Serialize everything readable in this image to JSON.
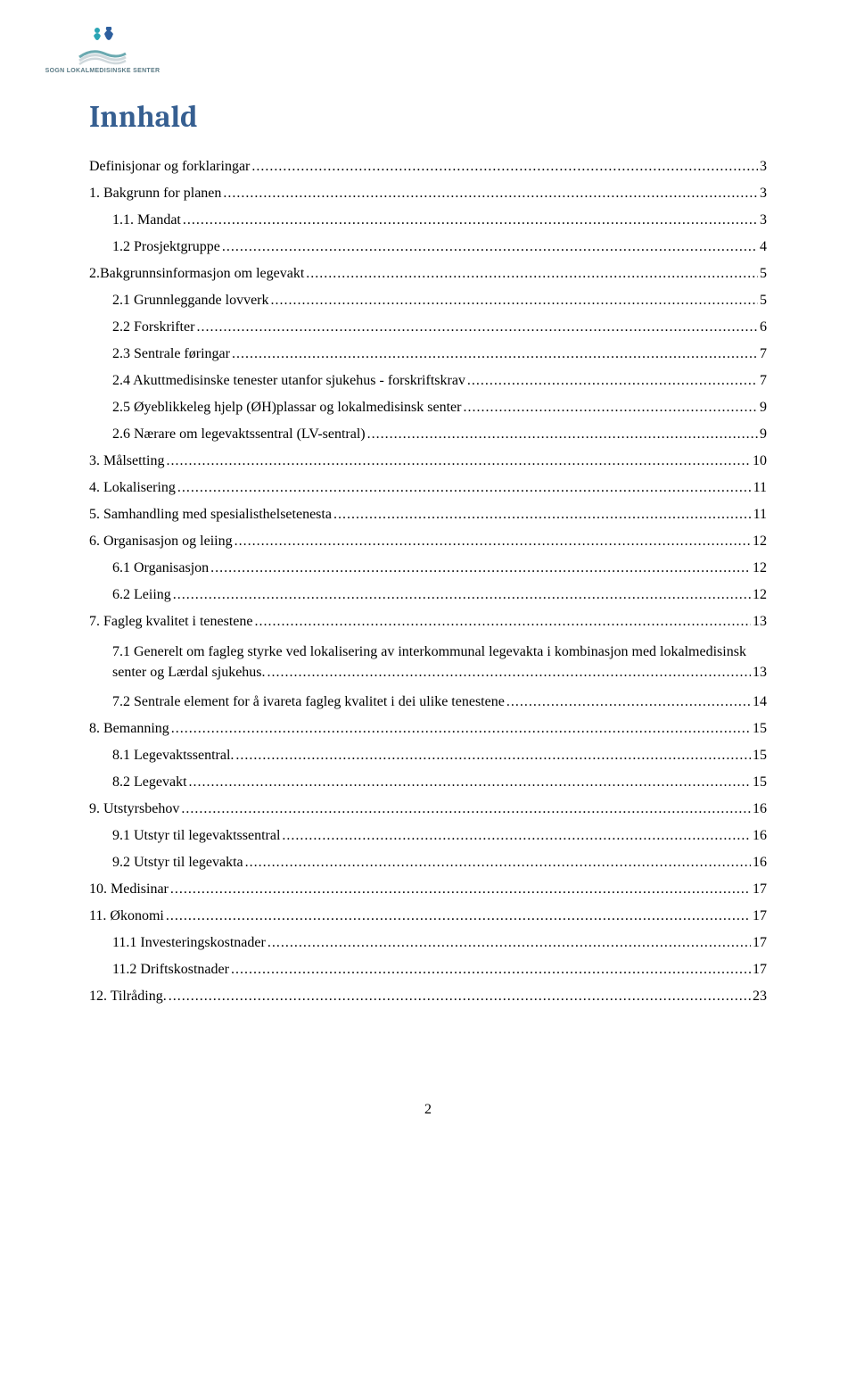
{
  "logo": {
    "text": "SOGN LOKALMEDISINSKE SENTER",
    "colors": {
      "teal": "#2aa5b5",
      "blue": "#2d5f9e",
      "wave_light": "#cfd8dc",
      "wave_teal": "#6aa9b0"
    }
  },
  "title": "Innhald",
  "title_color": "#365f91",
  "title_font": "Cambria",
  "title_fontsize": 34,
  "body_font": "Times New Roman",
  "body_fontsize": 16,
  "page_number": "2",
  "toc": [
    {
      "level": 0,
      "label": "Definisjonar og forklaringar",
      "page": "3"
    },
    {
      "level": 0,
      "label": "1. Bakgrunn for planen",
      "page": "3"
    },
    {
      "level": 1,
      "label": "1.1. Mandat",
      "page": "3"
    },
    {
      "level": 1,
      "label": "1.2 Prosjektgruppe",
      "page": "4"
    },
    {
      "level": 0,
      "label": "2.Bakgrunnsinformasjon om legevakt",
      "page": "5"
    },
    {
      "level": 1,
      "label": "2.1 Grunnleggande lovverk",
      "page": "5"
    },
    {
      "level": 1,
      "label": "2.2 Forskrifter",
      "page": "6"
    },
    {
      "level": 1,
      "label": "2.3 Sentrale føringar",
      "page": "7"
    },
    {
      "level": 1,
      "label": "2.4 Akuttmedisinske tenester utanfor sjukehus - forskriftskrav",
      "page": "7"
    },
    {
      "level": 1,
      "label": "2.5 Øyeblikkeleg hjelp (ØH)plassar og lokalmedisinsk senter",
      "page": "9"
    },
    {
      "level": 1,
      "label": "2.6 Nærare om legevaktssentral (LV-sentral)",
      "page": "9"
    },
    {
      "level": 0,
      "label": "3. Målsetting",
      "page": "10"
    },
    {
      "level": 0,
      "label": "4. Lokalisering",
      "page": "11"
    },
    {
      "level": 0,
      "label": "5. Samhandling med spesialisthelsetenesta",
      "page": "11"
    },
    {
      "level": 0,
      "label": "6. Organisasjon og leiing",
      "page": "12"
    },
    {
      "level": 1,
      "label": "6.1 Organisasjon",
      "page": "12"
    },
    {
      "level": 1,
      "label": "6.2 Leiing",
      "page": "12"
    },
    {
      "level": 0,
      "label": "7. Fagleg kvalitet i tenestene",
      "page": "13"
    },
    {
      "level": 1,
      "label": "7.1 Generelt om fagleg styrke ved lokalisering av interkommunal legevakta i kombinasjon med lokalmedisinsk senter og Lærdal sjukehus.",
      "page": "13",
      "wrap": true
    },
    {
      "level": 1,
      "label": "7.2 Sentrale element for å ivareta fagleg kvalitet i dei ulike tenestene",
      "page": "14"
    },
    {
      "level": 0,
      "label": "8. Bemanning",
      "page": "15"
    },
    {
      "level": 1,
      "label": "8.1 Legevaktssentral.",
      "page": "15"
    },
    {
      "level": 1,
      "label": "8.2 Legevakt",
      "page": "15"
    },
    {
      "level": 0,
      "label": "9. Utstyrsbehov",
      "page": "16"
    },
    {
      "level": 1,
      "label": "9.1 Utstyr til legevaktssentral",
      "page": "16"
    },
    {
      "level": 1,
      "label": "9.2 Utstyr til legevakta",
      "page": "16"
    },
    {
      "level": 0,
      "label": "10. Medisinar",
      "page": "17"
    },
    {
      "level": 0,
      "label": "11. Økonomi",
      "page": "17"
    },
    {
      "level": 1,
      "label": "11.1 Investeringskostnader",
      "page": "17"
    },
    {
      "level": 1,
      "label": "11.2 Driftskostnader",
      "page": "17"
    },
    {
      "level": 0,
      "label": "12. Tilråding.",
      "page": "23"
    }
  ]
}
